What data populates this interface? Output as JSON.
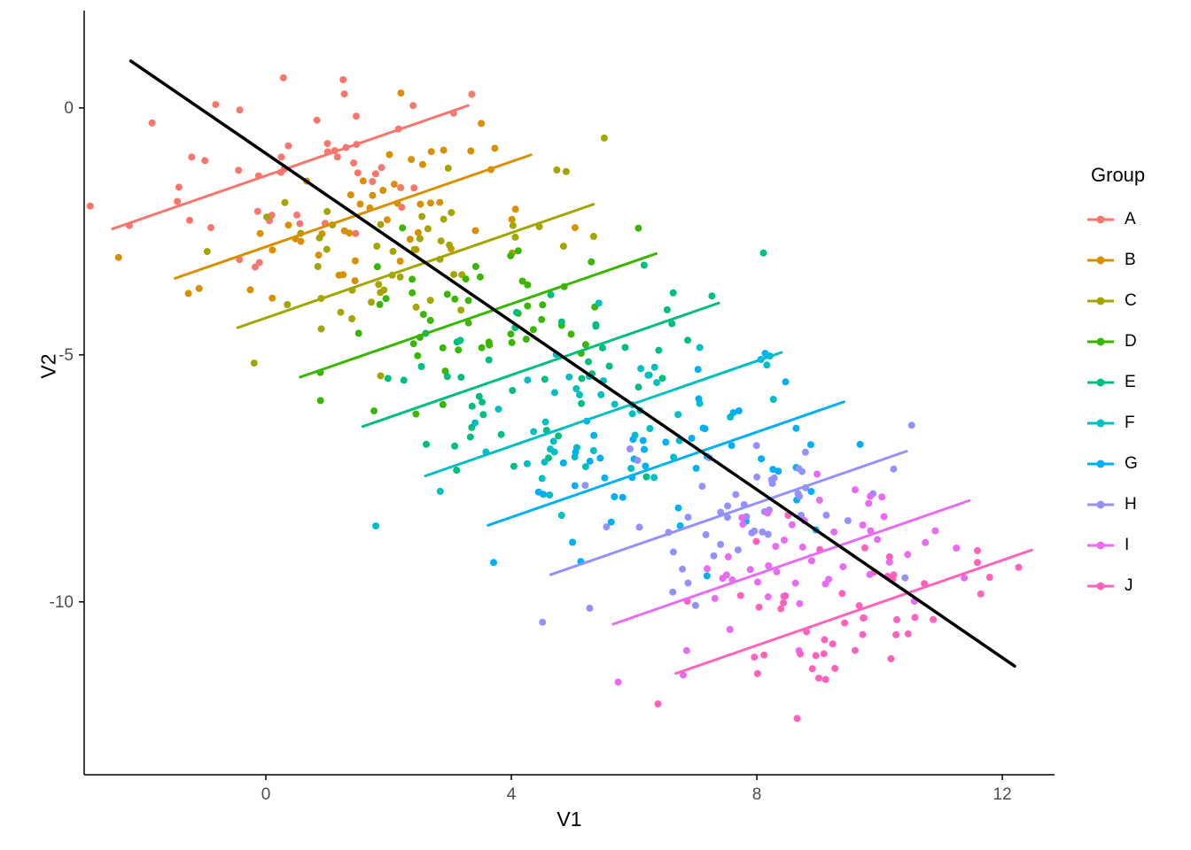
{
  "chart_data": {
    "type": "scatter",
    "title": "",
    "xlabel": "V1",
    "ylabel": "V2",
    "xlim": [
      -2.96,
      12.85
    ],
    "ylim": [
      -13.5,
      1.97
    ],
    "x_ticks": [
      0,
      4,
      8,
      12
    ],
    "y_ticks": [
      0,
      -5,
      -10
    ],
    "grid": false,
    "background": "#FFFFFF",
    "axis_color": "#000000",
    "tick_label_color": "#4D4D4D",
    "legend_title": "Group",
    "legend_position": "right",
    "overall_trend_line": {
      "color": "#000000",
      "x1": -2.2,
      "y1": 0.95,
      "x2": 12.2,
      "y2": -11.3,
      "stroke_width": 3.5,
      "slope": -0.85
    },
    "point_generation": {
      "seed": 42,
      "n_per_group": 50,
      "sd_x": 1.35,
      "sd_y": 0.9,
      "within_group_slope": 0.25,
      "point_radius": 4
    },
    "groups": [
      {
        "label": "A",
        "color": "#F8766D",
        "center_x": 0.4,
        "center_y": -1.2,
        "line": {
          "x1": -2.5,
          "y1": -2.45,
          "x2": 3.3,
          "y2": 0.05
        }
      },
      {
        "label": "B",
        "color": "#D89000",
        "center_x": 1.42,
        "center_y": -2.2,
        "line": {
          "x1": -1.48,
          "y1": -3.45,
          "x2": 4.32,
          "y2": -0.95
        }
      },
      {
        "label": "C",
        "color": "#A3A500",
        "center_x": 2.44,
        "center_y": -3.2,
        "line": {
          "x1": -0.46,
          "y1": -4.45,
          "x2": 5.34,
          "y2": -1.95
        }
      },
      {
        "label": "D",
        "color": "#39B600",
        "center_x": 3.46,
        "center_y": -4.2,
        "line": {
          "x1": 0.56,
          "y1": -5.45,
          "x2": 6.36,
          "y2": -2.95
        }
      },
      {
        "label": "E",
        "color": "#00BF7D",
        "center_x": 4.48,
        "center_y": -5.2,
        "line": {
          "x1": 1.58,
          "y1": -6.45,
          "x2": 7.38,
          "y2": -3.95
        }
      },
      {
        "label": "F",
        "color": "#00BFC4",
        "center_x": 5.5,
        "center_y": -6.2,
        "line": {
          "x1": 2.6,
          "y1": -7.45,
          "x2": 8.4,
          "y2": -4.95
        }
      },
      {
        "label": "G",
        "color": "#00B0F6",
        "center_x": 6.52,
        "center_y": -7.2,
        "line": {
          "x1": 3.62,
          "y1": -8.45,
          "x2": 9.42,
          "y2": -5.95
        }
      },
      {
        "label": "H",
        "color": "#9590FF",
        "center_x": 7.54,
        "center_y": -8.2,
        "line": {
          "x1": 4.64,
          "y1": -9.45,
          "x2": 10.44,
          "y2": -6.95
        }
      },
      {
        "label": "I",
        "color": "#E76BF3",
        "center_x": 8.56,
        "center_y": -9.2,
        "line": {
          "x1": 5.66,
          "y1": -10.45,
          "x2": 11.46,
          "y2": -7.95
        }
      },
      {
        "label": "J",
        "color": "#FF62BC",
        "center_x": 9.58,
        "center_y": -10.2,
        "line": {
          "x1": 6.68,
          "y1": -11.45,
          "x2": 12.48,
          "y2": -8.95
        }
      }
    ],
    "group_line_stroke_width": 3
  }
}
